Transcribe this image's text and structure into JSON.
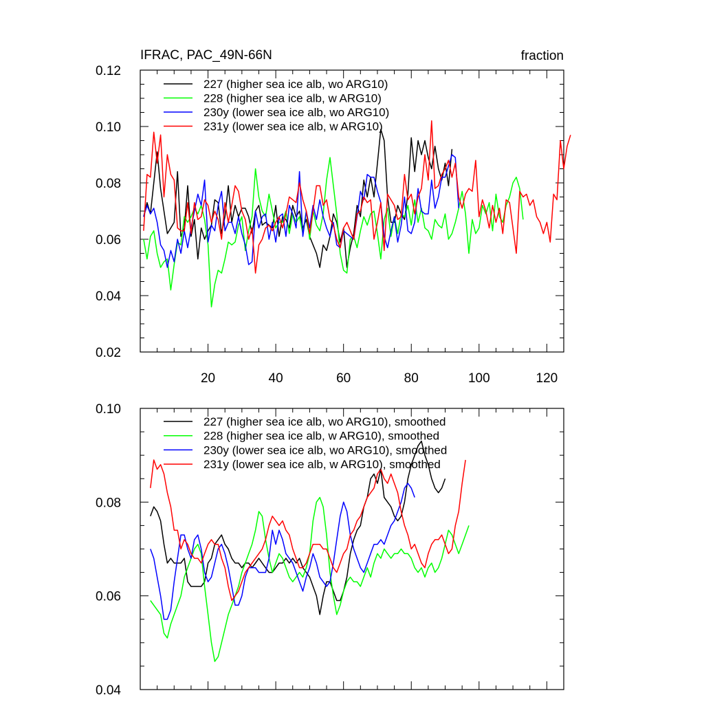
{
  "top_left_title": "IFRAC, PAC_49N-66N",
  "top_right_title": "fraction",
  "colors": {
    "s227": "#000000",
    "s228": "#00ff00",
    "s230y": "#0000ff",
    "s231y": "#ff0000"
  },
  "chart_data": [
    {
      "type": "line",
      "panel": "top",
      "title": "IFRAC, PAC_49N-66N",
      "units": "fraction",
      "xlim": [
        0,
        125
      ],
      "ylim": [
        0.02,
        0.12
      ],
      "xticks": [
        20,
        40,
        60,
        80,
        100,
        120
      ],
      "xtick_labels": [
        "20",
        "40",
        "60",
        "80",
        "100",
        "120"
      ],
      "yticks": [
        0.02,
        0.04,
        0.06,
        0.08,
        0.1,
        0.12
      ],
      "ytick_labels": [
        "0.02",
        "0.04",
        "0.06",
        "0.08",
        "0.10",
        "0.12"
      ],
      "legend_position": "top-left",
      "series": [
        {
          "name": "227 (higher sea ice alb, wo ARG10)",
          "color": "#000000",
          "x_start": 1,
          "values": [
            0.068,
            0.073,
            0.069,
            0.08,
            0.091,
            0.078,
            0.07,
            0.062,
            0.064,
            0.066,
            0.084,
            0.061,
            0.064,
            0.079,
            0.061,
            0.067,
            0.053,
            0.064,
            0.06,
            0.063,
            0.065,
            0.074,
            0.073,
            0.062,
            0.068,
            0.079,
            0.066,
            0.072,
            0.068,
            0.071,
            0.071,
            0.068,
            0.062,
            0.07,
            0.072,
            0.065,
            0.066,
            0.065,
            0.064,
            0.072,
            0.061,
            0.068,
            0.067,
            0.064,
            0.072,
            0.068,
            0.07,
            0.064,
            0.067,
            0.061,
            0.058,
            0.055,
            0.05,
            0.058,
            0.056,
            0.061,
            0.069,
            0.066,
            0.059,
            0.064,
            0.05,
            0.057,
            0.062,
            0.072,
            0.068,
            0.081,
            0.075,
            0.082,
            0.075,
            0.087,
            0.099,
            0.095,
            0.075,
            0.066,
            0.066,
            0.072,
            0.069,
            0.067,
            0.076,
            0.096,
            0.084,
            0.095,
            0.09,
            0.095,
            0.089,
            0.085,
            0.093,
            0.085,
            0.081,
            0.087,
            0.079,
            0.092
          ]
        },
        {
          "name": "228 (higher sea ice alb, w ARG10)",
          "color": "#00ff00",
          "x_start": 1,
          "values": [
            0.06,
            0.053,
            0.061,
            0.063,
            0.055,
            0.05,
            0.052,
            0.053,
            0.042,
            0.051,
            0.059,
            0.058,
            0.068,
            0.066,
            0.068,
            0.071,
            0.069,
            0.072,
            0.067,
            0.058,
            0.036,
            0.044,
            0.049,
            0.048,
            0.053,
            0.059,
            0.058,
            0.059,
            0.065,
            0.068,
            0.056,
            0.063,
            0.068,
            0.085,
            0.075,
            0.07,
            0.068,
            0.076,
            0.07,
            0.064,
            0.066,
            0.066,
            0.07,
            0.062,
            0.069,
            0.066,
            0.068,
            0.062,
            0.07,
            0.06,
            0.07,
            0.065,
            0.063,
            0.069,
            0.081,
            0.089,
            0.079,
            0.069,
            0.055,
            0.049,
            0.048,
            0.06,
            0.061,
            0.057,
            0.063,
            0.068,
            0.065,
            0.069,
            0.07,
            0.062,
            0.053,
            0.067,
            0.071,
            0.061,
            0.068,
            0.062,
            0.069,
            0.068,
            0.072,
            0.065,
            0.074,
            0.066,
            0.071,
            0.064,
            0.063,
            0.06,
            0.067,
            0.065,
            0.064,
            0.069,
            0.06,
            0.062,
            0.066,
            0.071,
            0.077,
            0.069,
            0.055,
            0.067,
            0.062,
            0.064,
            0.072,
            0.069,
            0.073,
            0.063,
            0.076,
            0.068,
            0.066,
            0.072,
            0.075,
            0.08,
            0.082,
            0.078,
            0.067
          ]
        },
        {
          "name": "230y (lower sea ice alb, wo ARG10)",
          "color": "#0000ff",
          "x_start": 1,
          "values": [
            0.068,
            0.072,
            0.069,
            0.071,
            0.066,
            0.058,
            0.056,
            0.05,
            0.056,
            0.052,
            0.06,
            0.055,
            0.063,
            0.057,
            0.064,
            0.07,
            0.076,
            0.072,
            0.081,
            0.059,
            0.065,
            0.063,
            0.072,
            0.077,
            0.063,
            0.066,
            0.066,
            0.062,
            0.068,
            0.062,
            0.058,
            0.051,
            0.052,
            0.07,
            0.064,
            0.068,
            0.069,
            0.06,
            0.066,
            0.059,
            0.068,
            0.069,
            0.061,
            0.072,
            0.069,
            0.064,
            0.084,
            0.061,
            0.07,
            0.064,
            0.072,
            0.067,
            0.074,
            0.068,
            0.064,
            0.061,
            0.066,
            0.058,
            0.057,
            0.063,
            0.062,
            0.061,
            0.06,
            0.068,
            0.077,
            0.074,
            0.083,
            0.082,
            0.082,
            0.077,
            0.073,
            0.061,
            0.057,
            0.063,
            0.068,
            0.059,
            0.065,
            0.075,
            0.063,
            0.062,
            0.066,
            0.078,
            0.07,
            0.069,
            0.069,
            0.081,
            0.071,
            0.075,
            0.082,
            0.082,
            0.086,
            0.09,
            0.089,
            0.071
          ]
        },
        {
          "name": "231y (lower sea ice alb, w ARG10)",
          "color": "#ff0000",
          "x_start": 1,
          "values": [
            0.063,
            0.083,
            0.082,
            0.098,
            0.087,
            0.097,
            0.075,
            0.09,
            0.083,
            0.081,
            0.064,
            0.063,
            0.063,
            0.073,
            0.062,
            0.073,
            0.067,
            0.068,
            0.074,
            0.072,
            0.066,
            0.07,
            0.067,
            0.06,
            0.073,
            0.066,
            0.072,
            0.079,
            0.077,
            0.07,
            0.067,
            0.06,
            0.064,
            0.048,
            0.058,
            0.06,
            0.064,
            0.065,
            0.063,
            0.066,
            0.068,
            0.064,
            0.069,
            0.075,
            0.074,
            0.073,
            0.08,
            0.074,
            0.07,
            0.062,
            0.07,
            0.079,
            0.079,
            0.072,
            0.074,
            0.067,
            0.065,
            0.06,
            0.057,
            0.064,
            0.066,
            0.063,
            0.06,
            0.069,
            0.07,
            0.075,
            0.073,
            0.074,
            0.06,
            0.066,
            0.073,
            0.056,
            0.076,
            0.074,
            0.072,
            0.067,
            0.068,
            0.083,
            0.074,
            0.076,
            0.069,
            0.075,
            0.078,
            0.09,
            0.081,
            0.102,
            0.078,
            0.079,
            0.083,
            0.085,
            0.088,
            0.082,
            0.087,
            0.075,
            0.071,
            0.076,
            0.078,
            0.077,
            0.088,
            0.068,
            0.074,
            0.07,
            0.064,
            0.072,
            0.066,
            0.071,
            0.062,
            0.074,
            0.073,
            0.064,
            0.055,
            0.077,
            0.075,
            0.076,
            0.072,
            0.074,
            0.068,
            0.066,
            0.062,
            0.066,
            0.059,
            0.076,
            0.074,
            0.095,
            0.085,
            0.093,
            0.097
          ]
        }
      ]
    },
    {
      "type": "line",
      "panel": "bottom",
      "xlim": [
        0,
        125
      ],
      "ylim": [
        0.04,
        0.1
      ],
      "xticks": [
        20,
        40,
        60,
        80,
        100,
        120
      ],
      "yticks": [
        0.04,
        0.06,
        0.08,
        0.1
      ],
      "ytick_labels": [
        "0.04",
        "0.06",
        "0.08",
        "0.10"
      ],
      "legend_position": "top-left",
      "series": [
        {
          "name": "227 (higher sea ice alb, wo ARG10), smoothed",
          "color": "#000000",
          "x_start": 3,
          "values": [
            0.077,
            0.079,
            0.078,
            0.076,
            0.071,
            0.067,
            0.068,
            0.067,
            0.067,
            0.067,
            0.068,
            0.063,
            0.062,
            0.062,
            0.062,
            0.062,
            0.063,
            0.067,
            0.068,
            0.071,
            0.072,
            0.073,
            0.071,
            0.07,
            0.068,
            0.067,
            0.067,
            0.066,
            0.067,
            0.067,
            0.066,
            0.067,
            0.068,
            0.067,
            0.066,
            0.065,
            0.065,
            0.066,
            0.067,
            0.067,
            0.068,
            0.067,
            0.068,
            0.067,
            0.068,
            0.066,
            0.065,
            0.064,
            0.062,
            0.06,
            0.056,
            0.06,
            0.063,
            0.063,
            0.061,
            0.059,
            0.059,
            0.061,
            0.064,
            0.069,
            0.072,
            0.074,
            0.075,
            0.079,
            0.081,
            0.085,
            0.086,
            0.084,
            0.087,
            0.081,
            0.08,
            0.079,
            0.077,
            0.076,
            0.077,
            0.08,
            0.085,
            0.088,
            0.09,
            0.092,
            0.093,
            0.09,
            0.088,
            0.085,
            0.083,
            0.082,
            0.083,
            0.085
          ]
        },
        {
          "name": "228 (higher sea ice alb, w ARG10), smoothed",
          "color": "#00ff00",
          "x_start": 3,
          "values": [
            0.059,
            0.058,
            0.057,
            0.056,
            0.052,
            0.051,
            0.054,
            0.056,
            0.058,
            0.06,
            0.064,
            0.066,
            0.068,
            0.07,
            0.071,
            0.069,
            0.062,
            0.056,
            0.05,
            0.046,
            0.047,
            0.05,
            0.053,
            0.056,
            0.058,
            0.06,
            0.062,
            0.065,
            0.067,
            0.069,
            0.071,
            0.074,
            0.078,
            0.077,
            0.072,
            0.068,
            0.065,
            0.067,
            0.069,
            0.068,
            0.066,
            0.064,
            0.063,
            0.064,
            0.065,
            0.064,
            0.066,
            0.069,
            0.076,
            0.08,
            0.081,
            0.079,
            0.073,
            0.065,
            0.06,
            0.056,
            0.058,
            0.061,
            0.063,
            0.064,
            0.063,
            0.063,
            0.062,
            0.064,
            0.066,
            0.064,
            0.067,
            0.069,
            0.068,
            0.07,
            0.069,
            0.068,
            0.069,
            0.069,
            0.07,
            0.069,
            0.069,
            0.068,
            0.066,
            0.065,
            0.066,
            0.064,
            0.066,
            0.067,
            0.065,
            0.066,
            0.068,
            0.071,
            0.074,
            0.073,
            0.071,
            0.069,
            0.071,
            0.073,
            0.075
          ]
        },
        {
          "name": "230y (lower sea ice alb, wo ARG10), smoothed",
          "color": "#0000ff",
          "x_start": 3,
          "values": [
            0.07,
            0.068,
            0.064,
            0.06,
            0.055,
            0.055,
            0.057,
            0.063,
            0.068,
            0.073,
            0.073,
            0.07,
            0.068,
            0.072,
            0.073,
            0.07,
            0.065,
            0.063,
            0.064,
            0.067,
            0.07,
            0.071,
            0.069,
            0.066,
            0.062,
            0.058,
            0.058,
            0.06,
            0.064,
            0.066,
            0.066,
            0.066,
            0.065,
            0.065,
            0.065,
            0.068,
            0.074,
            0.071,
            0.074,
            0.072,
            0.069,
            0.068,
            0.067,
            0.065,
            0.063,
            0.061,
            0.064,
            0.066,
            0.069,
            0.067,
            0.064,
            0.063,
            0.062,
            0.063,
            0.067,
            0.072,
            0.077,
            0.08,
            0.078,
            0.073,
            0.07,
            0.068,
            0.066,
            0.065,
            0.067,
            0.069,
            0.071,
            0.071,
            0.072,
            0.071,
            0.073,
            0.075,
            0.076,
            0.078,
            0.08,
            0.083,
            0.084,
            0.083,
            0.081
          ]
        },
        {
          "name": "231y (lower sea ice alb, w ARG10), smoothed",
          "color": "#ff0000",
          "x_start": 3,
          "values": [
            0.083,
            0.089,
            0.087,
            0.088,
            0.086,
            0.082,
            0.079,
            0.074,
            0.074,
            0.07,
            0.072,
            0.071,
            0.069,
            0.068,
            0.068,
            0.067,
            0.069,
            0.071,
            0.072,
            0.071,
            0.071,
            0.068,
            0.066,
            0.062,
            0.059,
            0.06,
            0.061,
            0.063,
            0.065,
            0.066,
            0.067,
            0.068,
            0.069,
            0.07,
            0.072,
            0.075,
            0.077,
            0.076,
            0.075,
            0.076,
            0.074,
            0.073,
            0.07,
            0.068,
            0.066,
            0.066,
            0.067,
            0.069,
            0.071,
            0.071,
            0.071,
            0.07,
            0.07,
            0.068,
            0.066,
            0.065,
            0.067,
            0.069,
            0.07,
            0.073,
            0.074,
            0.076,
            0.077,
            0.079,
            0.081,
            0.082,
            0.083,
            0.086,
            0.087,
            0.085,
            0.084,
            0.086,
            0.084,
            0.082,
            0.078,
            0.075,
            0.073,
            0.07,
            0.071,
            0.069,
            0.067,
            0.066,
            0.069,
            0.071,
            0.072,
            0.072,
            0.073,
            0.071,
            0.069,
            0.07,
            0.075,
            0.078,
            0.084,
            0.089
          ]
        }
      ]
    }
  ]
}
